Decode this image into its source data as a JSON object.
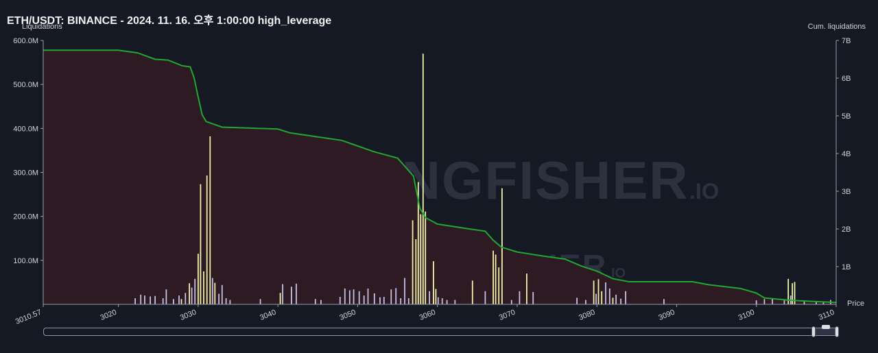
{
  "header": {
    "title": "ETH/USDT: BINANCE - 2024. 11. 16. 오후 1:00:00 high_leverage",
    "left_axis_title": "Liquidations",
    "right_axis_title": "Cum. liquidations",
    "x_axis_title": "Price"
  },
  "watermark": {
    "brand": "THE KINGFISHER",
    "suffix": ".IO"
  },
  "colors": {
    "background": "#151924",
    "area_fill": "#2e1a22",
    "cum_line": "#1fa832",
    "bar_lavender": "#c3c3ea",
    "bar_yellow": "#f0f3a8",
    "bar_pink": "#c67d88",
    "axis": "#d0d3da"
  },
  "chart_data": {
    "type": "bar",
    "xlim": [
      3010.57,
      3110
    ],
    "x_ticks": [
      "3010.57",
      "3020",
      "3030",
      "3040",
      "3050",
      "3060",
      "3070",
      "3080",
      "3090",
      "3100",
      "3110"
    ],
    "y_left_ticks": [
      "600.0M",
      "500.0M",
      "400.0M",
      "300.0M",
      "200.0M",
      "100.0M"
    ],
    "y_left_lim": [
      0,
      600000000
    ],
    "y_right_ticks": [
      "7B",
      "6B",
      "5B",
      "4B",
      "3B",
      "2B",
      "1B"
    ],
    "y_right_lim": [
      0,
      7000000000
    ],
    "series": [
      {
        "name": "",
        "kind": "cumulative",
        "x": [
          3010.57,
          3020,
          3022.4,
          3024.6,
          3026.2,
          3028,
          3029,
          3029.5,
          3030,
          3030.5,
          3031,
          3033,
          3036,
          3040,
          3041.5,
          3045,
          3048,
          3050,
          3052,
          3055,
          3057,
          3057.8,
          3058.5,
          3060,
          3064,
          3066,
          3067,
          3068,
          3070,
          3073,
          3076,
          3078,
          3080,
          3082,
          3084,
          3092,
          3094,
          3098,
          3100,
          3101,
          3104,
          3106,
          3110
        ],
        "y": [
          6740000000,
          6740000000,
          6670000000,
          6500000000,
          6480000000,
          6330000000,
          6300000000,
          6000000000,
          5500000000,
          5030000000,
          4850000000,
          4700000000,
          4680000000,
          4650000000,
          4550000000,
          4440000000,
          4350000000,
          4200000000,
          4050000000,
          3880000000,
          3400000000,
          2550000000,
          2300000000,
          2130000000,
          2000000000,
          1940000000,
          1700000000,
          1520000000,
          1390000000,
          1290000000,
          1200000000,
          1020000000,
          880000000,
          680000000,
          600000000,
          600000000,
          520000000,
          420000000,
          300000000,
          170000000,
          110000000,
          90000000,
          50000000
        ]
      },
      {
        "name": "",
        "kind": "bars",
        "x": [
          3022.1,
          3022.8,
          3023.3,
          3024.0,
          3024.6,
          3025.6,
          3026.0,
          3026.9,
          3027.6,
          3027.9,
          3028.4,
          3028.9,
          3029.2,
          3029.6,
          3030.0,
          3030.3,
          3030.7,
          3031.1,
          3031.5,
          3031.8,
          3032.1,
          3032.6,
          3033.0,
          3033.5,
          3034.0,
          3037.8,
          3040.3,
          3040.6,
          3041.7,
          3042.3,
          3044.7,
          3045.4,
          3047.8,
          3048.4,
          3049.0,
          3049.5,
          3050.2,
          3050.8,
          3051.3,
          3052.1,
          3052.8,
          3053.3,
          3054.2,
          3054.8,
          3055.4,
          3055.9,
          3056.4,
          3056.9,
          3057.3,
          3057.6,
          3057.9,
          3058.2,
          3058.5,
          3059.0,
          3059.5,
          3059.8,
          3060.1,
          3060.6,
          3061.2,
          3062.2,
          3064.4,
          3066.0,
          3067.0,
          3067.3,
          3067.7,
          3068.1,
          3069.3,
          3070.3,
          3071.2,
          3072.0,
          3077.5,
          3078.6,
          3079.6,
          3079.9,
          3080.2,
          3080.6,
          3081.1,
          3081.6,
          3082.0,
          3082.4,
          3083.0,
          3083.6,
          3088.4,
          3100.0,
          3101.0,
          3102.0,
          3103.5,
          3104.0,
          3104.3,
          3104.5,
          3104.8,
          3106.0,
          3107.5,
          3108.4,
          3109.3
        ],
        "values": [
          14000000,
          22000000,
          20000000,
          18000000,
          19000000,
          14000000,
          34000000,
          12000000,
          20000000,
          12000000,
          26000000,
          48000000,
          38000000,
          58000000,
          115000000,
          273000000,
          75000000,
          293000000,
          382000000,
          60000000,
          49000000,
          24000000,
          44000000,
          14000000,
          10000000,
          12000000,
          26000000,
          46000000,
          40000000,
          47000000,
          12000000,
          10000000,
          17000000,
          36000000,
          32000000,
          34000000,
          30000000,
          20000000,
          36000000,
          25000000,
          16000000,
          17000000,
          34000000,
          37000000,
          14000000,
          60000000,
          14000000,
          191000000,
          148000000,
          278000000,
          205000000,
          570000000,
          211000000,
          30000000,
          98000000,
          35000000,
          16000000,
          14000000,
          10000000,
          10000000,
          54000000,
          30000000,
          122000000,
          113000000,
          84000000,
          264000000,
          10000000,
          30000000,
          70000000,
          28000000,
          15000000,
          10000000,
          54000000,
          24000000,
          57000000,
          30000000,
          50000000,
          36000000,
          15000000,
          22000000,
          13000000,
          30000000,
          12000000,
          9000000,
          12000000,
          14000000,
          10000000,
          58000000,
          20000000,
          48000000,
          51000000,
          8000000,
          6000000,
          4000000,
          10000000
        ],
        "colors": [
          "lavender",
          "lavender",
          "lavender",
          "lavender",
          "lavender",
          "lavender",
          "lavender",
          "lavender",
          "lavender",
          "yellow",
          "lavender",
          "yellow",
          "lavender",
          "lavender",
          "yellow",
          "yellow",
          "yellow",
          "yellow",
          "yellow",
          "lavender",
          "yellow",
          "lavender",
          "lavender",
          "lavender",
          "lavender",
          "lavender",
          "yellow",
          "lavender",
          "lavender",
          "lavender",
          "lavender",
          "lavender",
          "lavender",
          "lavender",
          "lavender",
          "lavender",
          "lavender",
          "lavender",
          "lavender",
          "lavender",
          "lavender",
          "lavender",
          "lavender",
          "lavender",
          "lavender",
          "lavender",
          "lavender",
          "yellow",
          "yellow",
          "yellow",
          "yellow",
          "yellow",
          "yellow",
          "lavender",
          "yellow",
          "yellow",
          "lavender",
          "lavender",
          "lavender",
          "lavender",
          "yellow",
          "lavender",
          "yellow",
          "yellow",
          "yellow",
          "yellow",
          "lavender",
          "lavender",
          "yellow",
          "lavender",
          "lavender",
          "lavender",
          "yellow",
          "lavender",
          "yellow",
          "yellow",
          "lavender",
          "lavender",
          "yellow",
          "lavender",
          "lavender",
          "lavender",
          "lavender",
          "lavender",
          "lavender",
          "lavender",
          "lavender",
          "yellow",
          "lavender",
          "yellow",
          "yellow",
          "lavender",
          "lavender",
          "lavender",
          "lavender"
        ]
      }
    ],
    "grid": false,
    "legend": "none"
  }
}
